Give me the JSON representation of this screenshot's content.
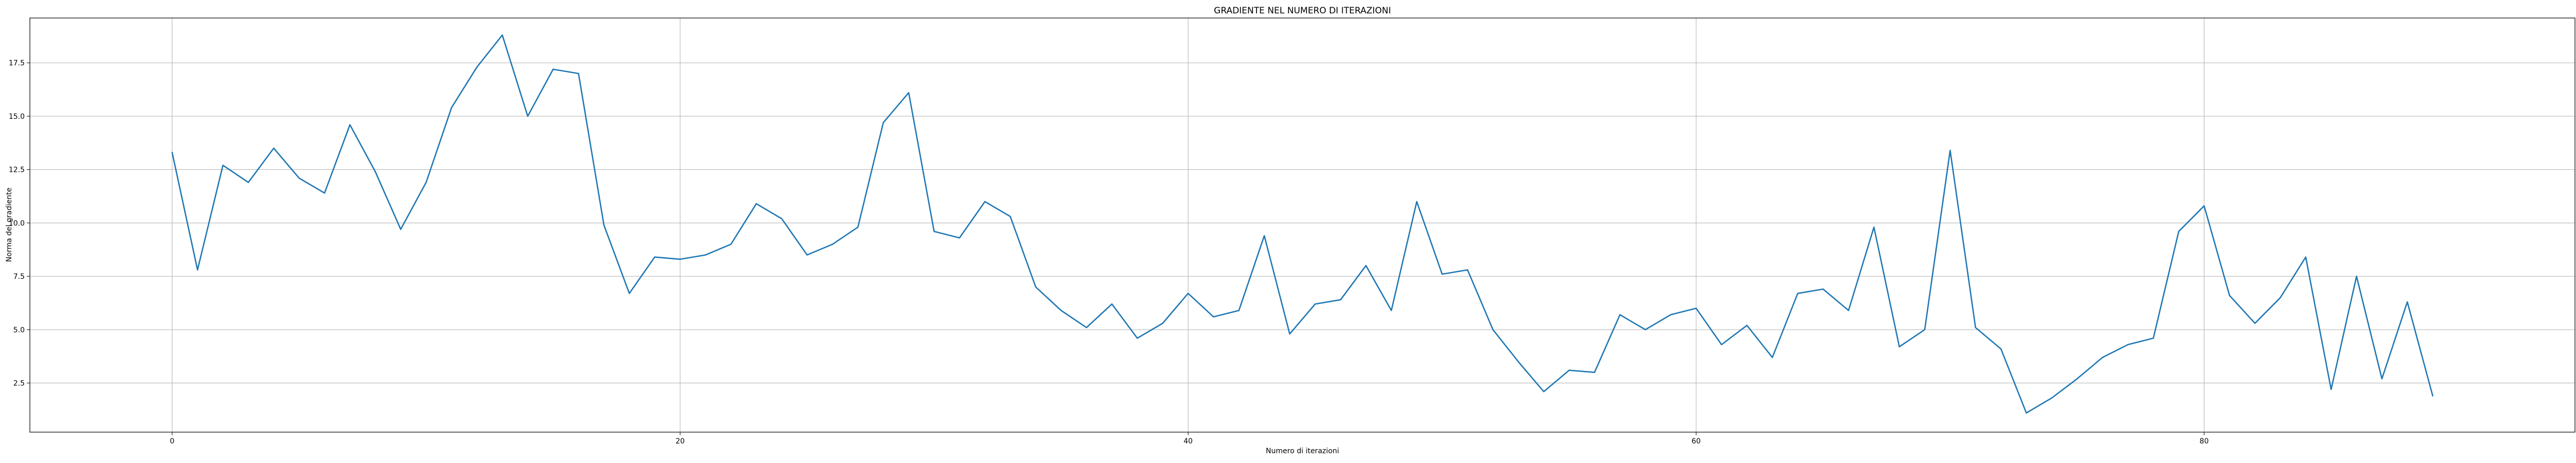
{
  "chart_data": {
    "type": "line",
    "title": "GRADIENTE NEL NUMERO DI ITERAZIONI",
    "xlabel": "Numero di iterazioni",
    "ylabel": "Norma del gradiente",
    "xlim": [
      -5.6,
      94.6
    ],
    "ylim": [
      0.2,
      19.6
    ],
    "xticks": [
      0,
      20,
      40,
      60,
      80
    ],
    "yticks": [
      2.5,
      5.0,
      7.5,
      10.0,
      12.5,
      15.0,
      17.5
    ],
    "grid": true,
    "legend": "none",
    "color": "#1f77b4",
    "x": [
      0,
      1,
      2,
      3,
      4,
      5,
      6,
      7,
      8,
      9,
      10,
      11,
      12,
      13,
      14,
      15,
      16,
      17,
      18,
      19,
      20,
      21,
      22,
      23,
      24,
      25,
      26,
      27,
      28,
      29,
      30,
      31,
      32,
      33,
      34,
      35,
      36,
      37,
      38,
      39,
      40,
      41,
      42,
      43,
      44,
      45,
      46,
      47,
      48,
      49,
      50,
      51,
      52,
      53,
      54,
      55,
      56,
      57,
      58,
      59,
      60,
      61,
      62,
      63,
      64,
      65,
      66,
      67,
      68,
      69,
      70,
      71,
      72,
      73,
      74,
      75,
      76,
      77,
      78,
      79,
      80,
      81,
      82,
      83,
      84,
      85,
      86,
      87,
      88,
      89
    ],
    "values": [
      13.3,
      7.8,
      12.7,
      11.9,
      13.5,
      12.1,
      11.4,
      14.6,
      12.4,
      9.7,
      11.9,
      15.4,
      17.3,
      18.8,
      15.0,
      17.2,
      17.0,
      9.9,
      6.7,
      8.4,
      8.3,
      8.5,
      9.0,
      10.9,
      10.2,
      8.5,
      9.0,
      9.8,
      14.7,
      16.1,
      9.6,
      9.3,
      11.0,
      10.3,
      7.0,
      5.9,
      5.1,
      6.2,
      4.6,
      5.3,
      6.7,
      5.6,
      5.9,
      9.4,
      4.8,
      6.2,
      6.4,
      8.0,
      5.9,
      11.0,
      7.6,
      7.8,
      5.0,
      3.5,
      2.1,
      3.1,
      3.0,
      5.7,
      5.0,
      5.7,
      6.0,
      4.3,
      5.2,
      3.7,
      6.7,
      6.9,
      5.9,
      9.8,
      4.2,
      5.0,
      13.4,
      5.1,
      4.1,
      1.1,
      1.8,
      2.7,
      3.7,
      4.3,
      4.6,
      9.6,
      10.8,
      6.6,
      5.3,
      6.5,
      8.4,
      2.2,
      7.5,
      2.7,
      6.3,
      1.9
    ]
  }
}
